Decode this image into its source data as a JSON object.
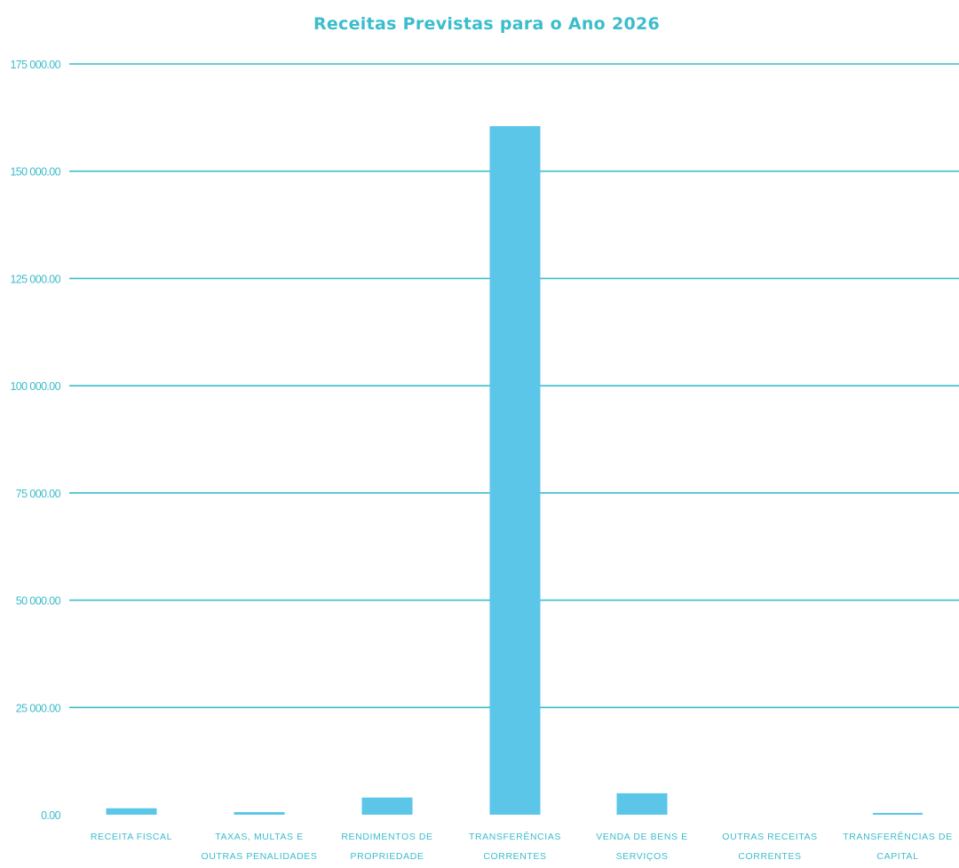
{
  "chart_data": {
    "type": "bar",
    "title": "Receitas Previstas para o Ano 2026",
    "xlabel": "",
    "ylabel": "",
    "categories": [
      [
        "RECEITA FISCAL"
      ],
      [
        "TAXAS, MULTAS E",
        "OUTRAS PENALIDADES"
      ],
      [
        "RENDIMENTOS DE",
        "PROPRIEDADE"
      ],
      [
        "TRANSFERÊNCIAS",
        "CORRENTES"
      ],
      [
        "VENDA DE BENS E",
        "SERVIÇOS"
      ],
      [
        "OUTRAS RECEITAS",
        "CORRENTES"
      ],
      [
        "TRANSFERÊNCIAS DE",
        "CAPITAL"
      ]
    ],
    "values": [
      1500,
      600,
      4000,
      160500,
      5000,
      0,
      200
    ],
    "ylim": [
      0,
      175000
    ],
    "yticks": [
      0,
      25000,
      50000,
      75000,
      100000,
      125000,
      150000,
      175000
    ],
    "ytick_labels": [
      "0.00",
      "25 000.00",
      "50 000.00",
      "75 000.00",
      "100 000.00",
      "125 000.00",
      "150 000.00",
      "175 000.00"
    ],
    "grid": true,
    "legend": "none",
    "colors": {
      "bar": "#5bc6e8",
      "grid": "#3bbdcc",
      "text": "#3bbdcc",
      "title": "#3bbdcc"
    }
  }
}
